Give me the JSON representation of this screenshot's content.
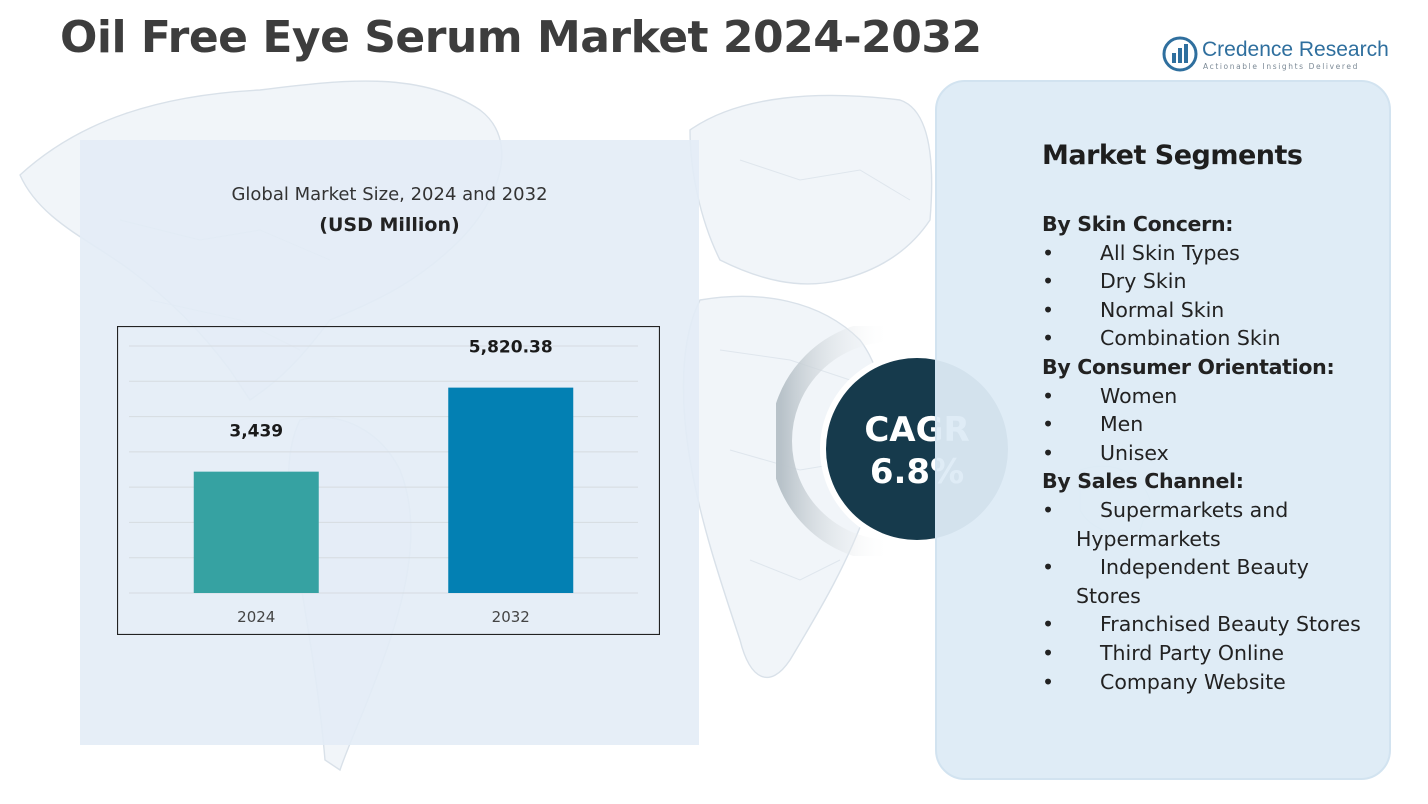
{
  "title": "Oil Free Eye Serum Market 2024-2032",
  "brand": {
    "name": "Credence Research",
    "tagline": "Actionable Insights Delivered",
    "logo_icon": "bar-chart-logo-icon"
  },
  "chart": {
    "title": "Global Market Size, 2024 and 2032",
    "unit_label": "(USD Million)"
  },
  "chart_data": {
    "type": "bar",
    "categories": [
      "2024",
      "2032"
    ],
    "values": [
      3439,
      5820.38
    ],
    "value_labels": [
      "3,439",
      "5,820.38"
    ],
    "colors": [
      "#36a2a2",
      "#0380b3"
    ],
    "ylim": [
      0,
      7000
    ],
    "grid": true,
    "xlabel": "",
    "ylabel": ""
  },
  "cagr": {
    "label": "CAGR",
    "value": "6.8%",
    "circle_color": "#163a4c"
  },
  "segments": {
    "title": "Market Segments",
    "bullet": "•",
    "groups": [
      {
        "title": "By Skin Concern:",
        "items": [
          "All Skin Types",
          "Dry Skin",
          "Normal Skin",
          "Combination Skin"
        ]
      },
      {
        "title": "By Consumer Orientation:",
        "items": [
          "Women",
          "Men",
          "Unisex"
        ]
      },
      {
        "title": "By Sales Channel:",
        "items": [
          "Supermarkets and Hypermarkets",
          "Independent Beauty Stores",
          "Franchised Beauty Stores",
          "Third Party Online",
          "Company Website"
        ]
      }
    ]
  }
}
